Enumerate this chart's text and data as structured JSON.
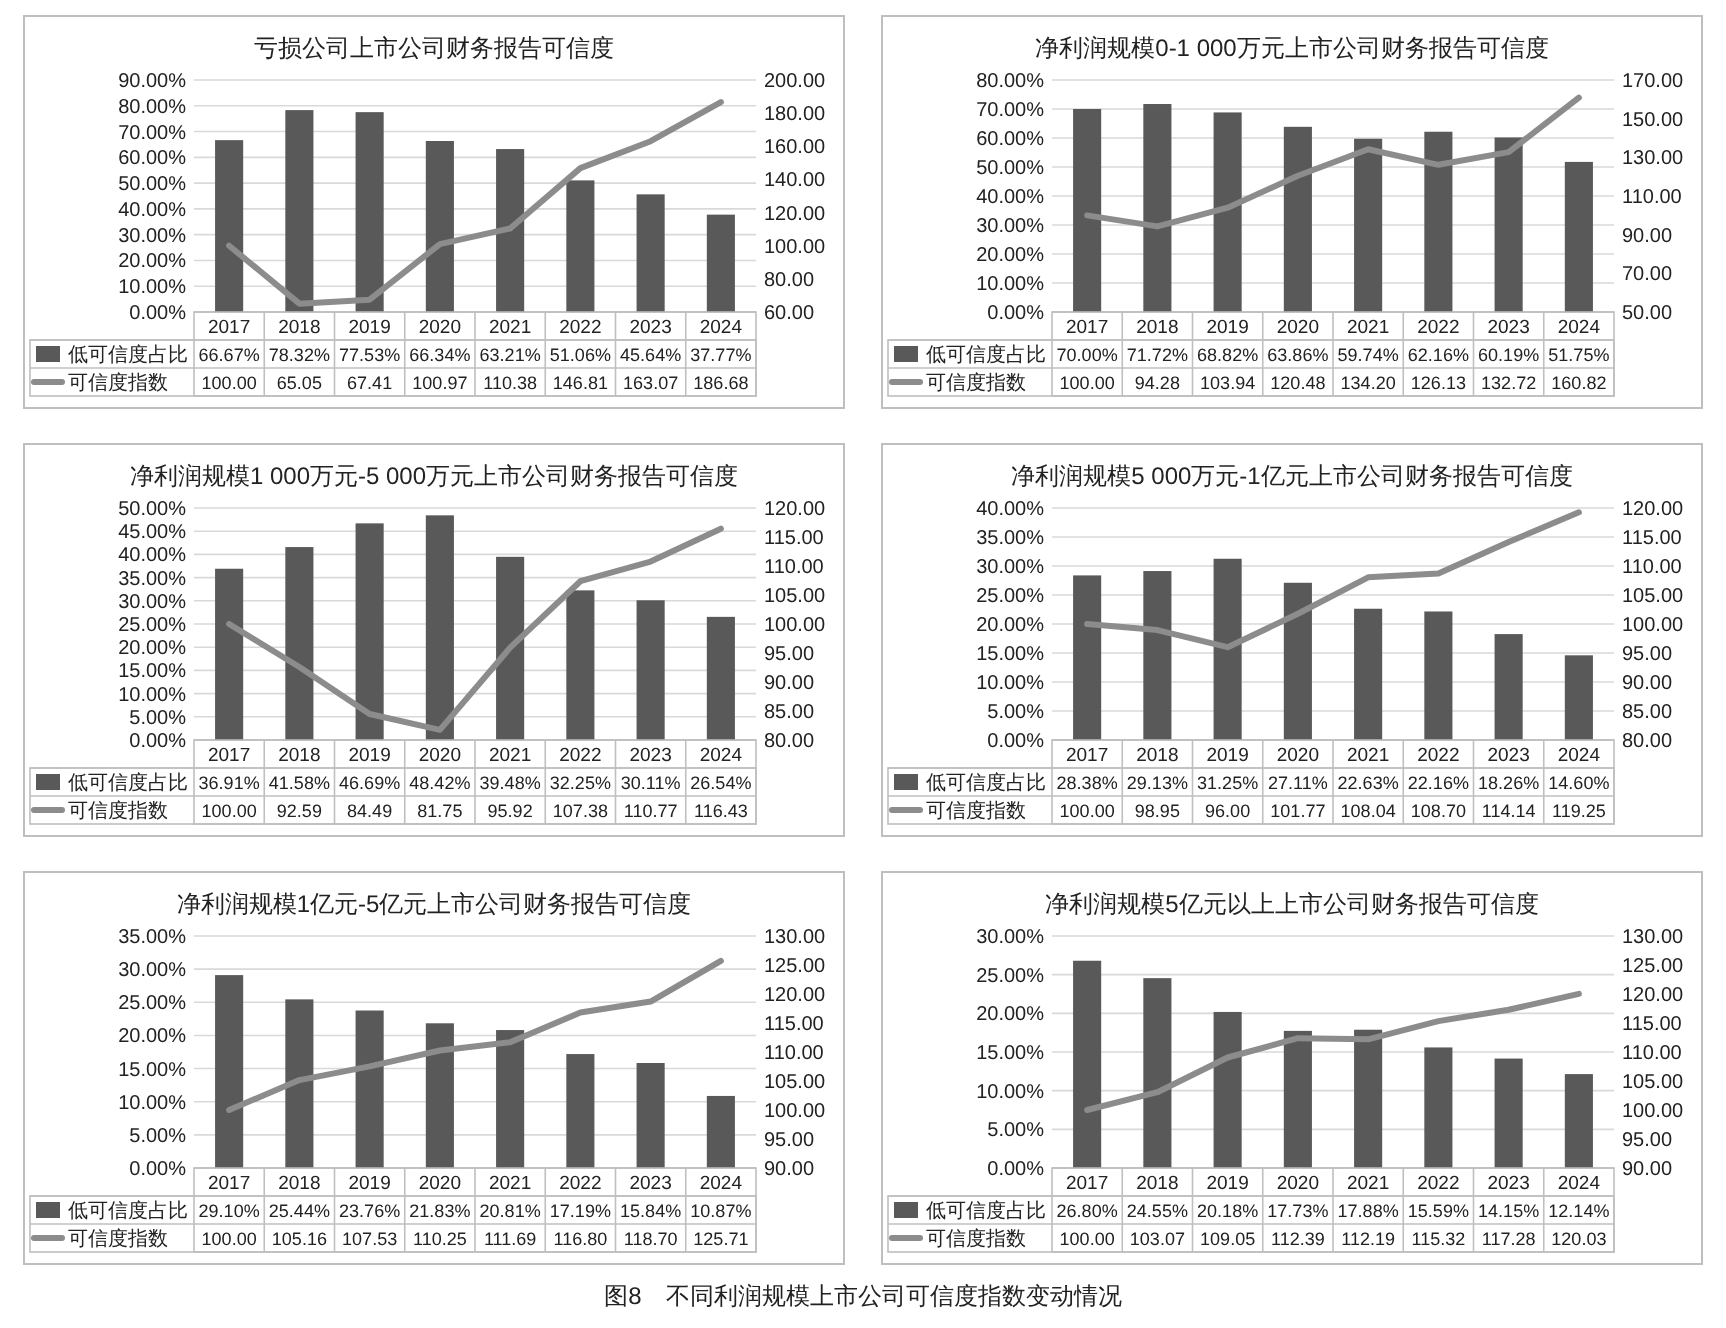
{
  "chart_data": [
    {
      "type": "bar",
      "title": "亏损公司上市公司财务报告可信度",
      "categories": [
        "2017",
        "2018",
        "2019",
        "2020",
        "2021",
        "2022",
        "2023",
        "2024"
      ],
      "grid": "y",
      "legend": "bottom",
      "ylim": [
        0,
        90
      ],
      "yticks": [
        {
          "value": 0,
          "label": "0.00%"
        },
        {
          "value": 10,
          "label": "10.00%"
        },
        {
          "value": 20,
          "label": "20.00%"
        },
        {
          "value": 30,
          "label": "30.00%"
        },
        {
          "value": 40,
          "label": "40.00%"
        },
        {
          "value": 50,
          "label": "50.00%"
        },
        {
          "value": 60,
          "label": "60.00%"
        },
        {
          "value": 70,
          "label": "70.00%"
        },
        {
          "value": 80,
          "label": "80.00%"
        },
        {
          "value": 90,
          "label": "90.00%"
        }
      ],
      "y2lim": [
        60,
        200
      ],
      "y2ticks": [
        {
          "value": 60,
          "label": "60.00"
        },
        {
          "value": 80,
          "label": "80.00"
        },
        {
          "value": 100,
          "label": "100.00"
        },
        {
          "value": 120,
          "label": "120.00"
        },
        {
          "value": 140,
          "label": "140.00"
        },
        {
          "value": 160,
          "label": "160.00"
        },
        {
          "value": 180,
          "label": "180.00"
        },
        {
          "value": 200,
          "label": "200.00"
        }
      ],
      "series": [
        {
          "name": "低可信度占比",
          "color": "#595959",
          "values": [
            66.67,
            78.32,
            77.53,
            66.34,
            63.21,
            51.06,
            45.64,
            37.77
          ],
          "value_labels": [
            "66.67%",
            "78.32%",
            "77.53%",
            "66.34%",
            "63.21%",
            "51.06%",
            "45.64%",
            "37.77%"
          ]
        },
        {
          "name": "可信度指数",
          "type": "line",
          "axis": "y2",
          "color": "#8c8c8c",
          "values": [
            100.0,
            65.05,
            67.41,
            100.97,
            110.38,
            146.81,
            163.07,
            186.68
          ],
          "value_labels": [
            "100.00",
            "65.05",
            "67.41",
            "100.97",
            "110.38",
            "146.81",
            "163.07",
            "186.68"
          ]
        }
      ]
    },
    {
      "type": "bar",
      "title": "净利润规模0-1 000万元上市公司财务报告可信度",
      "categories": [
        "2017",
        "2018",
        "2019",
        "2020",
        "2021",
        "2022",
        "2023",
        "2024"
      ],
      "grid": "y",
      "legend": "bottom",
      "ylim": [
        0,
        80
      ],
      "yticks": [
        {
          "value": 0,
          "label": "0.00%"
        },
        {
          "value": 10,
          "label": "10.00%"
        },
        {
          "value": 20,
          "label": "20.00%"
        },
        {
          "value": 30,
          "label": "30.00%"
        },
        {
          "value": 40,
          "label": "40.00%"
        },
        {
          "value": 50,
          "label": "50.00%"
        },
        {
          "value": 60,
          "label": "60.00%"
        },
        {
          "value": 70,
          "label": "70.00%"
        },
        {
          "value": 80,
          "label": "80.00%"
        }
      ],
      "y2lim": [
        50,
        170
      ],
      "y2ticks": [
        {
          "value": 50,
          "label": "50.00"
        },
        {
          "value": 70,
          "label": "70.00"
        },
        {
          "value": 90,
          "label": "90.00"
        },
        {
          "value": 110,
          "label": "110.00"
        },
        {
          "value": 130,
          "label": "130.00"
        },
        {
          "value": 150,
          "label": "150.00"
        },
        {
          "value": 170,
          "label": "170.00"
        }
      ],
      "series": [
        {
          "name": "低可信度占比",
          "color": "#595959",
          "values": [
            70.0,
            71.72,
            68.82,
            63.86,
            59.74,
            62.16,
            60.19,
            51.75
          ],
          "value_labels": [
            "70.00%",
            "71.72%",
            "68.82%",
            "63.86%",
            "59.74%",
            "62.16%",
            "60.19%",
            "51.75%"
          ]
        },
        {
          "name": "可信度指数",
          "type": "line",
          "axis": "y2",
          "color": "#8c8c8c",
          "values": [
            100.0,
            94.28,
            103.94,
            120.48,
            134.2,
            126.13,
            132.72,
            160.82
          ],
          "value_labels": [
            "100.00",
            "94.28",
            "103.94",
            "120.48",
            "134.20",
            "126.13",
            "132.72",
            "160.82"
          ]
        }
      ]
    },
    {
      "type": "bar",
      "title": "净利润规模1 000万元-5 000万元上市公司财务报告可信度",
      "categories": [
        "2017",
        "2018",
        "2019",
        "2020",
        "2021",
        "2022",
        "2023",
        "2024"
      ],
      "grid": "y",
      "legend": "bottom",
      "ylim": [
        0,
        50
      ],
      "yticks": [
        {
          "value": 0,
          "label": "0.00%"
        },
        {
          "value": 5,
          "label": "5.00%"
        },
        {
          "value": 10,
          "label": "10.00%"
        },
        {
          "value": 15,
          "label": "15.00%"
        },
        {
          "value": 20,
          "label": "20.00%"
        },
        {
          "value": 25,
          "label": "25.00%"
        },
        {
          "value": 30,
          "label": "30.00%"
        },
        {
          "value": 35,
          "label": "35.00%"
        },
        {
          "value": 40,
          "label": "40.00%"
        },
        {
          "value": 45,
          "label": "45.00%"
        },
        {
          "value": 50,
          "label": "50.00%"
        }
      ],
      "y2lim": [
        80,
        120
      ],
      "y2ticks": [
        {
          "value": 80,
          "label": "80.00"
        },
        {
          "value": 85,
          "label": "85.00"
        },
        {
          "value": 90,
          "label": "90.00"
        },
        {
          "value": 95,
          "label": "95.00"
        },
        {
          "value": 100,
          "label": "100.00"
        },
        {
          "value": 105,
          "label": "105.00"
        },
        {
          "value": 110,
          "label": "110.00"
        },
        {
          "value": 115,
          "label": "115.00"
        },
        {
          "value": 120,
          "label": "120.00"
        }
      ],
      "series": [
        {
          "name": "低可信度占比",
          "color": "#595959",
          "values": [
            36.91,
            41.58,
            46.69,
            48.42,
            39.48,
            32.25,
            30.11,
            26.54
          ],
          "value_labels": [
            "36.91%",
            "41.58%",
            "46.69%",
            "48.42%",
            "39.48%",
            "32.25%",
            "30.11%",
            "26.54%"
          ]
        },
        {
          "name": "可信度指数",
          "type": "line",
          "axis": "y2",
          "color": "#8c8c8c",
          "values": [
            100.0,
            92.59,
            84.49,
            81.75,
            95.92,
            107.38,
            110.77,
            116.43
          ],
          "value_labels": [
            "100.00",
            "92.59",
            "84.49",
            "81.75",
            "95.92",
            "107.38",
            "110.77",
            "116.43"
          ]
        }
      ]
    },
    {
      "type": "bar",
      "title": "净利润规模5 000万元-1亿元上市公司财务报告可信度",
      "categories": [
        "2017",
        "2018",
        "2019",
        "2020",
        "2021",
        "2022",
        "2023",
        "2024"
      ],
      "grid": "y",
      "legend": "bottom",
      "ylim": [
        0,
        40
      ],
      "yticks": [
        {
          "value": 0,
          "label": "0.00%"
        },
        {
          "value": 5,
          "label": "5.00%"
        },
        {
          "value": 10,
          "label": "10.00%"
        },
        {
          "value": 15,
          "label": "15.00%"
        },
        {
          "value": 20,
          "label": "20.00%"
        },
        {
          "value": 25,
          "label": "25.00%"
        },
        {
          "value": 30,
          "label": "30.00%"
        },
        {
          "value": 35,
          "label": "35.00%"
        },
        {
          "value": 40,
          "label": "40.00%"
        }
      ],
      "y2lim": [
        80,
        120
      ],
      "y2ticks": [
        {
          "value": 80,
          "label": "80.00"
        },
        {
          "value": 85,
          "label": "85.00"
        },
        {
          "value": 90,
          "label": "90.00"
        },
        {
          "value": 95,
          "label": "95.00"
        },
        {
          "value": 100,
          "label": "100.00"
        },
        {
          "value": 105,
          "label": "105.00"
        },
        {
          "value": 110,
          "label": "110.00"
        },
        {
          "value": 115,
          "label": "115.00"
        },
        {
          "value": 120,
          "label": "120.00"
        }
      ],
      "series": [
        {
          "name": "低可信度占比",
          "color": "#595959",
          "values": [
            28.38,
            29.13,
            31.25,
            27.11,
            22.63,
            22.16,
            18.26,
            14.6
          ],
          "value_labels": [
            "28.38%",
            "29.13%",
            "31.25%",
            "27.11%",
            "22.63%",
            "22.16%",
            "18.26%",
            "14.60%"
          ]
        },
        {
          "name": "可信度指数",
          "type": "line",
          "axis": "y2",
          "color": "#8c8c8c",
          "values": [
            100.0,
            98.95,
            96.0,
            101.77,
            108.04,
            108.7,
            114.14,
            119.25
          ],
          "value_labels": [
            "100.00",
            "98.95",
            "96.00",
            "101.77",
            "108.04",
            "108.70",
            "114.14",
            "119.25"
          ]
        }
      ]
    },
    {
      "type": "bar",
      "title": "净利润规模1亿元-5亿元上市公司财务报告可信度",
      "categories": [
        "2017",
        "2018",
        "2019",
        "2020",
        "2021",
        "2022",
        "2023",
        "2024"
      ],
      "grid": "y",
      "legend": "bottom",
      "ylim": [
        0,
        35
      ],
      "yticks": [
        {
          "value": 0,
          "label": "0.00%"
        },
        {
          "value": 5,
          "label": "5.00%"
        },
        {
          "value": 10,
          "label": "10.00%"
        },
        {
          "value": 15,
          "label": "15.00%"
        },
        {
          "value": 20,
          "label": "20.00%"
        },
        {
          "value": 25,
          "label": "25.00%"
        },
        {
          "value": 30,
          "label": "30.00%"
        },
        {
          "value": 35,
          "label": "35.00%"
        }
      ],
      "y2lim": [
        90,
        130
      ],
      "y2ticks": [
        {
          "value": 90,
          "label": "90.00"
        },
        {
          "value": 95,
          "label": "95.00"
        },
        {
          "value": 100,
          "label": "100.00"
        },
        {
          "value": 105,
          "label": "105.00"
        },
        {
          "value": 110,
          "label": "110.00"
        },
        {
          "value": 115,
          "label": "115.00"
        },
        {
          "value": 120,
          "label": "120.00"
        },
        {
          "value": 125,
          "label": "125.00"
        },
        {
          "value": 130,
          "label": "130.00"
        }
      ],
      "series": [
        {
          "name": "低可信度占比",
          "color": "#595959",
          "values": [
            29.1,
            25.44,
            23.76,
            21.83,
            20.81,
            17.19,
            15.84,
            10.87
          ],
          "value_labels": [
            "29.10%",
            "25.44%",
            "23.76%",
            "21.83%",
            "20.81%",
            "17.19%",
            "15.84%",
            "10.87%"
          ]
        },
        {
          "name": "可信度指数",
          "type": "line",
          "axis": "y2",
          "color": "#8c8c8c",
          "values": [
            100.0,
            105.16,
            107.53,
            110.25,
            111.69,
            116.8,
            118.7,
            125.71
          ],
          "value_labels": [
            "100.00",
            "105.16",
            "107.53",
            "110.25",
            "111.69",
            "116.80",
            "118.70",
            "125.71"
          ]
        }
      ]
    },
    {
      "type": "bar",
      "title": "净利润规模5亿元以上上市公司财务报告可信度",
      "categories": [
        "2017",
        "2018",
        "2019",
        "2020",
        "2021",
        "2022",
        "2023",
        "2024"
      ],
      "grid": "y",
      "legend": "bottom",
      "ylim": [
        0,
        30
      ],
      "yticks": [
        {
          "value": 0,
          "label": "0.00%"
        },
        {
          "value": 5,
          "label": "5.00%"
        },
        {
          "value": 10,
          "label": "10.00%"
        },
        {
          "value": 15,
          "label": "15.00%"
        },
        {
          "value": 20,
          "label": "20.00%"
        },
        {
          "value": 25,
          "label": "25.00%"
        },
        {
          "value": 30,
          "label": "30.00%"
        }
      ],
      "y2lim": [
        90,
        130
      ],
      "y2ticks": [
        {
          "value": 90,
          "label": "90.00"
        },
        {
          "value": 95,
          "label": "95.00"
        },
        {
          "value": 100,
          "label": "100.00"
        },
        {
          "value": 105,
          "label": "105.00"
        },
        {
          "value": 110,
          "label": "110.00"
        },
        {
          "value": 115,
          "label": "115.00"
        },
        {
          "value": 120,
          "label": "120.00"
        },
        {
          "value": 125,
          "label": "125.00"
        },
        {
          "value": 130,
          "label": "130.00"
        }
      ],
      "annotations": [
        "图8　不同利润规模上市公司可信度指数变动情况"
      ],
      "series": [
        {
          "name": "低可信度占比",
          "color": "#595959",
          "values": [
            26.8,
            24.55,
            20.18,
            17.73,
            17.88,
            15.59,
            14.15,
            12.14
          ],
          "value_labels": [
            "26.80%",
            "24.55%",
            "20.18%",
            "17.73%",
            "17.88%",
            "15.59%",
            "14.15%",
            "12.14%"
          ]
        },
        {
          "name": "可信度指数",
          "type": "line",
          "axis": "y2",
          "color": "#8c8c8c",
          "values": [
            100.0,
            103.07,
            109.05,
            112.39,
            112.19,
            115.32,
            117.28,
            120.03
          ],
          "value_labels": [
            "100.00",
            "103.07",
            "109.05",
            "112.39",
            "112.19",
            "115.32",
            "117.28",
            "120.03"
          ]
        }
      ]
    }
  ]
}
